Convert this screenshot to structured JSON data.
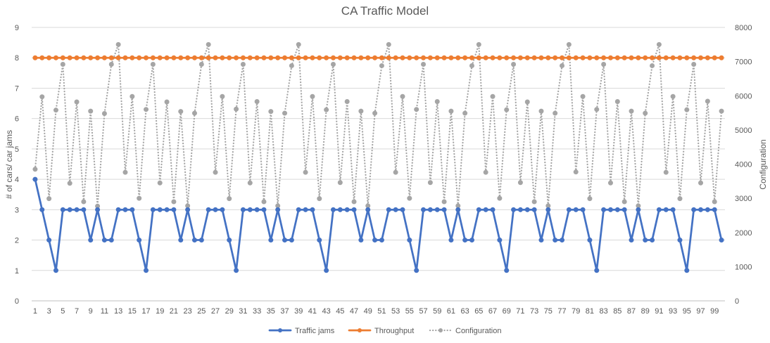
{
  "chart_data": {
    "type": "line",
    "title": "CA Traffic Model",
    "xlabel": "",
    "ylabel": "# of cars/ car jams",
    "y2label": "Configuration",
    "ylim": [
      0,
      9
    ],
    "y2lim": [
      0,
      8000
    ],
    "yticks": [
      "0",
      "1",
      "2",
      "3",
      "4",
      "5",
      "6",
      "7",
      "8",
      "9"
    ],
    "y2ticks": [
      "0",
      "1000",
      "2000",
      "3000",
      "4000",
      "5000",
      "6000",
      "7000",
      "8000"
    ],
    "grid": true,
    "legend_position": "bottom",
    "x": [
      1,
      2,
      3,
      4,
      5,
      6,
      7,
      8,
      9,
      10,
      11,
      12,
      13,
      14,
      15,
      16,
      17,
      18,
      19,
      20,
      21,
      22,
      23,
      24,
      25,
      26,
      27,
      28,
      29,
      30,
      31,
      32,
      33,
      34,
      35,
      36,
      37,
      38,
      39,
      40,
      41,
      42,
      43,
      44,
      45,
      46,
      47,
      48,
      49,
      50,
      51,
      52,
      53,
      54,
      55,
      56,
      57,
      58,
      59,
      60,
      61,
      62,
      63,
      64,
      65,
      66,
      67,
      68,
      69,
      70,
      71,
      72,
      73,
      74,
      75,
      76,
      77,
      78,
      79,
      80,
      81,
      82,
      83,
      84,
      85,
      86,
      87,
      88,
      89,
      90,
      91,
      92,
      93,
      94,
      95,
      96,
      97,
      98,
      99,
      100
    ],
    "xticks": [
      "1",
      "3",
      "5",
      "7",
      "9",
      "11",
      "13",
      "15",
      "17",
      "19",
      "21",
      "23",
      "25",
      "27",
      "29",
      "31",
      "33",
      "35",
      "37",
      "39",
      "41",
      "43",
      "45",
      "47",
      "49",
      "51",
      "53",
      "55",
      "57",
      "59",
      "61",
      "63",
      "65",
      "67",
      "69",
      "71",
      "73",
      "75",
      "77",
      "79",
      "81",
      "83",
      "85",
      "87",
      "89",
      "91",
      "93",
      "95",
      "97",
      "99"
    ],
    "series": [
      {
        "name": "Traffic jams",
        "axis": "left",
        "color": "#4472C4",
        "style": "solid",
        "values": [
          4,
          3,
          2,
          1,
          3,
          3,
          3,
          3,
          2,
          3,
          2,
          2,
          3,
          3,
          3,
          2,
          1,
          3,
          3,
          3,
          3,
          2,
          3,
          2,
          2,
          3,
          3,
          3,
          2,
          1,
          3,
          3,
          3,
          3,
          2,
          3,
          2,
          2,
          3,
          3,
          3,
          2,
          1,
          3,
          3,
          3,
          3,
          2,
          3,
          2,
          2,
          3,
          3,
          3,
          2,
          1,
          3,
          3,
          3,
          3,
          2,
          3,
          2,
          2,
          3,
          3,
          3,
          2,
          1,
          3,
          3,
          3,
          3,
          2,
          3,
          2,
          2,
          3,
          3,
          3,
          2,
          1,
          3,
          3,
          3,
          3,
          2,
          3,
          2,
          2,
          3,
          3,
          3,
          2,
          1,
          3,
          3,
          3,
          3,
          2
        ]
      },
      {
        "name": "Throughput",
        "axis": "left",
        "color": "#ED7D31",
        "style": "solid",
        "values": [
          8,
          8,
          8,
          8,
          8,
          8,
          8,
          8,
          8,
          8,
          8,
          8,
          8,
          8,
          8,
          8,
          8,
          8,
          8,
          8,
          8,
          8,
          8,
          8,
          8,
          8,
          8,
          8,
          8,
          8,
          8,
          8,
          8,
          8,
          8,
          8,
          8,
          8,
          8,
          8,
          8,
          8,
          8,
          8,
          8,
          8,
          8,
          8,
          8,
          8,
          8,
          8,
          8,
          8,
          8,
          8,
          8,
          8,
          8,
          8,
          8,
          8,
          8,
          8,
          8,
          8,
          8,
          8,
          8,
          8,
          8,
          8,
          8,
          8,
          8,
          8,
          8,
          8,
          8,
          8,
          8,
          8,
          8,
          8,
          8,
          8,
          8,
          8,
          8,
          8,
          8,
          8,
          8,
          8,
          8,
          8,
          8,
          8,
          8,
          8
        ]
      },
      {
        "name": "Configuration",
        "axis": "right",
        "color": "#A5A5A5",
        "style": "dotted",
        "values": [
          3850,
          5970,
          2990,
          5580,
          6920,
          3440,
          5820,
          2900,
          5550,
          2770,
          5480,
          6920,
          7500,
          3760,
          5980,
          3000,
          5600,
          6920,
          3450,
          5820,
          2900,
          5540,
          2780,
          5490,
          6920,
          7500,
          3760,
          5980,
          2990,
          5610,
          6920,
          3450,
          5830,
          2900,
          5540,
          2780,
          5490,
          6880,
          7500,
          3760,
          5980,
          2990,
          5590,
          6920,
          3460,
          5830,
          2900,
          5550,
          2780,
          5490,
          6880,
          7500,
          3760,
          5980,
          3000,
          5600,
          6920,
          3460,
          5830,
          2900,
          5550,
          2780,
          5490,
          6880,
          7500,
          3760,
          5980,
          3000,
          5590,
          6920,
          3460,
          5820,
          2900,
          5550,
          2780,
          5490,
          6880,
          7500,
          3770,
          5980,
          2990,
          5600,
          6920,
          3450,
          5830,
          2900,
          5550,
          2780,
          5490,
          6880,
          7500,
          3760,
          5980,
          2990,
          5590,
          6920,
          3450,
          5840,
          2900,
          5550
        ]
      }
    ]
  }
}
